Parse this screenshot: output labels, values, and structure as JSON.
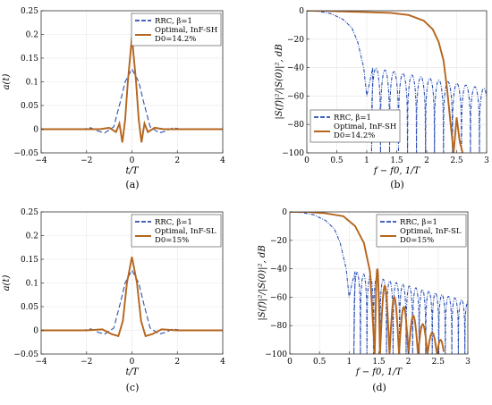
{
  "chart_data": [
    {
      "id": "a",
      "type": "line",
      "panel_label": "(a)",
      "xlabel": "t/T",
      "ylabel": "a(t)",
      "xlim": [
        -4,
        4
      ],
      "ylim": [
        -0.05,
        0.25
      ],
      "xticks": [
        -4,
        -2,
        0,
        2,
        4
      ],
      "yticks": [
        -0.05,
        0,
        0.05,
        0.1,
        0.15,
        0.2,
        0.25
      ],
      "xtick_labels": [
        "−4",
        "−2",
        "0",
        "2",
        "4"
      ],
      "ytick_labels": [
        "−0.05",
        "0",
        "0.05",
        "0.1",
        "0.15",
        "0.2",
        "0.25"
      ],
      "legend": {
        "position": "top-right",
        "entries": [
          "RRC, β=1",
          "Optimal, InF-SH",
          "D0=14.2%"
        ]
      },
      "series": [
        {
          "name": "RRC, β=1",
          "color": "#2b4fb5",
          "style": "dashed",
          "x": [
            -4,
            -2.2,
            -1.8,
            -1.5,
            -1.2,
            -0.8,
            -0.5,
            -0.3,
            0,
            0.3,
            0.5,
            0.8,
            1.2,
            1.5,
            1.8,
            2.2,
            4
          ],
          "y": [
            0,
            0,
            0.003,
            -0.004,
            -0.008,
            0.005,
            0.06,
            0.1,
            0.127,
            0.1,
            0.06,
            0.005,
            -0.008,
            -0.004,
            0.003,
            0,
            0
          ]
        },
        {
          "name": "Optimal, InF-SH",
          "color": "#b5651d",
          "style": "solid",
          "x": [
            -4,
            -2.5,
            -1.4,
            -1.0,
            -0.7,
            -0.55,
            -0.42,
            -0.3,
            -0.18,
            0,
            0.18,
            0.3,
            0.42,
            0.55,
            0.7,
            1.0,
            1.4,
            2.5,
            4
          ],
          "y": [
            0,
            0,
            0,
            0.003,
            -0.006,
            0.012,
            -0.028,
            0.02,
            0.1,
            0.195,
            0.1,
            0.02,
            -0.028,
            0.012,
            -0.006,
            0.003,
            0,
            0,
            0
          ]
        }
      ]
    },
    {
      "id": "b",
      "type": "line",
      "panel_label": "(b)",
      "xlabel": "f − f0, 1/T",
      "ylabel": "|S(f)|²/|S(0)|², dB",
      "xlim": [
        0,
        3
      ],
      "ylim": [
        -100,
        0
      ],
      "xticks": [
        0,
        0.5,
        1,
        1.5,
        2,
        2.5,
        3
      ],
      "yticks": [
        -100,
        -80,
        -60,
        -40,
        -20,
        0
      ],
      "xtick_labels": [
        "0",
        "0.5",
        "1",
        "1.5",
        "2",
        "2.5",
        "3"
      ],
      "ytick_labels": [
        "−100",
        "−80",
        "−60",
        "−40",
        "−20",
        "0"
      ],
      "legend": {
        "position": "bottom-left",
        "entries": [
          "RRC, β=1",
          "Optimal, InF-SH",
          "D0=14.2%"
        ]
      },
      "series": [
        {
          "name": "RRC, β=1",
          "color": "#2b4fb5",
          "style": "dashdot",
          "x": [
            0,
            0.2,
            0.4,
            0.6,
            0.75,
            0.85,
            0.95,
            1.0,
            1.05,
            1.1,
            3
          ],
          "y": [
            0,
            -0.5,
            -2,
            -6,
            -12,
            -22,
            -40,
            -60,
            -50,
            -40,
            -55
          ],
          "notes_lobes": {
            "start": 1.08,
            "end": 3,
            "period": 0.15,
            "top_start": -40,
            "top_end": -55
          }
        },
        {
          "name": "Optimal, InF-SH",
          "color": "#b5651d",
          "style": "solid",
          "x": [
            0,
            0.3,
            0.6,
            1.0,
            1.4,
            1.7,
            1.95,
            2.1,
            2.2,
            2.28,
            2.34,
            2.4,
            2.45,
            2.5,
            2.55,
            2.6
          ],
          "y": [
            0,
            0,
            -0.5,
            -1,
            -1.5,
            -3,
            -7,
            -13,
            -22,
            -35,
            -55,
            -80,
            -100,
            -75,
            -92,
            -100
          ]
        }
      ]
    },
    {
      "id": "c",
      "type": "line",
      "panel_label": "(c)",
      "xlabel": "t/T",
      "ylabel": "a(t)",
      "xlim": [
        -4,
        4
      ],
      "ylim": [
        -0.05,
        0.25
      ],
      "xticks": [
        -4,
        -2,
        0,
        2,
        4
      ],
      "yticks": [
        -0.05,
        0,
        0.05,
        0.1,
        0.15,
        0.2,
        0.25
      ],
      "xtick_labels": [
        "−4",
        "−2",
        "0",
        "2",
        "4"
      ],
      "ytick_labels": [
        "−0.05",
        "0",
        "0.05",
        "0.1",
        "0.15",
        "0.2",
        "0.25"
      ],
      "legend": {
        "position": "top-right",
        "entries": [
          "RRC, β=1",
          "Optimal, InF-SL",
          "D0=15%"
        ]
      },
      "series": [
        {
          "name": "RRC, β=1",
          "color": "#2b4fb5",
          "style": "dashed",
          "x": [
            -4,
            -2.2,
            -1.8,
            -1.5,
            -1.2,
            -0.8,
            -0.5,
            -0.3,
            0,
            0.3,
            0.5,
            0.8,
            1.2,
            1.5,
            1.8,
            2.2,
            4
          ],
          "y": [
            0,
            0,
            0.003,
            -0.004,
            -0.008,
            0.005,
            0.06,
            0.1,
            0.127,
            0.1,
            0.06,
            0.005,
            -0.008,
            -0.004,
            0.003,
            0,
            0
          ]
        },
        {
          "name": "Optimal, InF-SL",
          "color": "#b5651d",
          "style": "solid",
          "x": [
            -4,
            -2.0,
            -1.3,
            -0.9,
            -0.6,
            -0.4,
            -0.22,
            0,
            0.22,
            0.4,
            0.6,
            0.9,
            1.3,
            2.0,
            4
          ],
          "y": [
            0,
            0,
            0.002,
            -0.008,
            -0.012,
            0.02,
            0.1,
            0.155,
            0.1,
            0.02,
            -0.012,
            -0.008,
            0.002,
            0,
            0
          ]
        }
      ]
    },
    {
      "id": "d",
      "type": "line",
      "panel_label": "(d)",
      "xlabel": "f − f0, 1/T",
      "ylabel": "|S(f)|²/|S(0)|², dB",
      "xlim": [
        0,
        3
      ],
      "ylim": [
        -100,
        0
      ],
      "xticks": [
        0,
        0.5,
        1,
        1.5,
        2,
        2.5,
        3
      ],
      "yticks": [
        -100,
        -80,
        -60,
        -40,
        -20,
        0
      ],
      "xtick_labels": [
        "0",
        "0.5",
        "1",
        "1.5",
        "2",
        "2.5",
        "3"
      ],
      "ytick_labels": [
        "−100",
        "−80",
        "−60",
        "−40",
        "−20",
        "0"
      ],
      "legend": {
        "position": "top-right",
        "entries": [
          "RRC, β=1",
          "Optimal, InF-SL",
          "D0=15%"
        ]
      },
      "series": [
        {
          "name": "RRC, β=1",
          "color": "#2b4fb5",
          "style": "dashdot",
          "x": [
            0,
            0.2,
            0.4,
            0.6,
            0.75,
            0.85,
            0.95,
            1.0,
            1.05,
            1.1,
            3
          ],
          "y": [
            0,
            -0.5,
            -2,
            -6,
            -12,
            -22,
            -40,
            -60,
            -50,
            -42,
            -63
          ]
        },
        {
          "name": "Optimal, InF-SL",
          "color": "#b5651d",
          "style": "solid",
          "x": [
            0,
            0.3,
            0.6,
            0.9,
            1.1,
            1.25,
            1.35,
            1.43
          ],
          "y": [
            0,
            0,
            -1,
            -3,
            -10,
            -22,
            -42,
            -100
          ]
        }
      ]
    }
  ]
}
